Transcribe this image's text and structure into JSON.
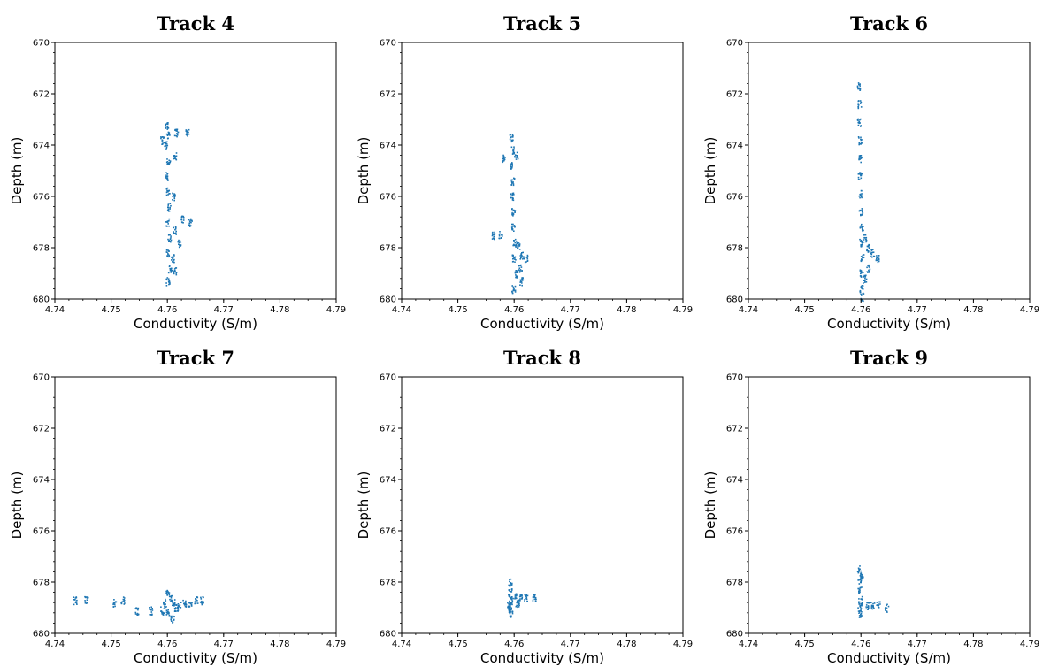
{
  "chart_data": [
    {
      "type": "scatter",
      "title": "Track 4",
      "xlabel": "Conductivity (S/m)",
      "ylabel": "Depth (m)",
      "xlim": [
        4.74,
        4.79
      ],
      "ylim": [
        680,
        670
      ],
      "y_inverted": true,
      "xticks": [
        "4.74",
        "4.75",
        "4.76",
        "4.77",
        "4.78",
        "4.79"
      ],
      "yticks": [
        "670",
        "672",
        "674",
        "676",
        "678",
        "680"
      ],
      "color": "#1f77b4",
      "points": [
        [
          4.7598,
          673.2
        ],
        [
          4.76,
          673.6
        ],
        [
          4.7597,
          674.0
        ],
        [
          4.7601,
          674.6
        ],
        [
          4.7598,
          675.2
        ],
        [
          4.76,
          675.8
        ],
        [
          4.7602,
          676.4
        ],
        [
          4.7599,
          677.0
        ],
        [
          4.7603,
          677.6
        ],
        [
          4.76,
          678.2
        ],
        [
          4.7604,
          678.8
        ],
        [
          4.76,
          679.3
        ],
        [
          4.7615,
          673.5
        ],
        [
          4.7635,
          673.5
        ],
        [
          4.759,
          673.8
        ],
        [
          4.7612,
          674.4
        ],
        [
          4.761,
          676.0
        ],
        [
          4.7625,
          676.9
        ],
        [
          4.764,
          677.0
        ],
        [
          4.7612,
          677.3
        ],
        [
          4.762,
          677.8
        ],
        [
          4.7608,
          678.4
        ],
        [
          4.7612,
          678.9
        ]
      ]
    },
    {
      "type": "scatter",
      "title": "Track 5",
      "xlabel": "Conductivity (S/m)",
      "ylabel": "Depth (m)",
      "xlim": [
        4.74,
        4.79
      ],
      "ylim": [
        680,
        670
      ],
      "y_inverted": true,
      "xticks": [
        "4.74",
        "4.75",
        "4.76",
        "4.77",
        "4.78",
        "4.79"
      ],
      "yticks": [
        "670",
        "672",
        "674",
        "676",
        "678",
        "680"
      ],
      "color": "#1f77b4",
      "points": [
        [
          4.7594,
          673.7
        ],
        [
          4.7596,
          674.2
        ],
        [
          4.7595,
          674.8
        ],
        [
          4.7597,
          675.4
        ],
        [
          4.7596,
          676.0
        ],
        [
          4.7598,
          676.6
        ],
        [
          4.7597,
          677.2
        ],
        [
          4.76,
          677.8
        ],
        [
          4.7599,
          678.4
        ],
        [
          4.7601,
          679.0
        ],
        [
          4.7598,
          679.6
        ],
        [
          4.7603,
          674.4
        ],
        [
          4.758,
          674.5
        ],
        [
          4.7575,
          677.5
        ],
        [
          4.7563,
          677.5
        ],
        [
          4.7606,
          677.9
        ],
        [
          4.7612,
          678.3
        ],
        [
          4.762,
          678.4
        ],
        [
          4.761,
          678.8
        ],
        [
          4.7612,
          679.3
        ]
      ]
    },
    {
      "type": "scatter",
      "title": "Track 6",
      "xlabel": "Conductivity (S/m)",
      "ylabel": "Depth (m)",
      "xlim": [
        4.74,
        4.79
      ],
      "ylim": [
        680,
        670
      ],
      "y_inverted": true,
      "xticks": [
        "4.74",
        "4.75",
        "4.76",
        "4.77",
        "4.78",
        "4.79"
      ],
      "yticks": [
        "670",
        "672",
        "674",
        "676",
        "678",
        "680"
      ],
      "color": "#1f77b4",
      "points": [
        [
          4.7595,
          671.7
        ],
        [
          4.7597,
          672.4
        ],
        [
          4.7596,
          673.1
        ],
        [
          4.7597,
          673.8
        ],
        [
          4.7598,
          674.5
        ],
        [
          4.7597,
          675.2
        ],
        [
          4.7598,
          675.9
        ],
        [
          4.7599,
          676.6
        ],
        [
          4.76,
          677.2
        ],
        [
          4.76,
          677.8
        ],
        [
          4.7601,
          678.4
        ],
        [
          4.76,
          679.0
        ],
        [
          4.76,
          679.6
        ],
        [
          4.7601,
          679.9
        ],
        [
          4.7606,
          677.6
        ],
        [
          4.7612,
          678.0
        ],
        [
          4.762,
          678.2
        ],
        [
          4.7628,
          678.4
        ],
        [
          4.7612,
          678.8
        ],
        [
          4.7606,
          679.2
        ]
      ]
    },
    {
      "type": "scatter",
      "title": "Track 7",
      "xlabel": "Conductivity (S/m)",
      "ylabel": "Depth (m)",
      "xlim": [
        4.74,
        4.79
      ],
      "ylim": [
        680,
        670
      ],
      "y_inverted": true,
      "xticks": [
        "4.74",
        "4.75",
        "4.76",
        "4.77",
        "4.78",
        "4.79"
      ],
      "yticks": [
        "670",
        "672",
        "674",
        "676",
        "678",
        "680"
      ],
      "color": "#1f77b4",
      "points": [
        [
          4.76,
          678.4
        ],
        [
          4.7605,
          678.6
        ],
        [
          4.761,
          678.8
        ],
        [
          4.7615,
          679.0
        ],
        [
          4.76,
          679.2
        ],
        [
          4.7608,
          679.4
        ],
        [
          4.762,
          678.9
        ],
        [
          4.763,
          678.8
        ],
        [
          4.764,
          678.9
        ],
        [
          4.765,
          678.7
        ],
        [
          4.766,
          678.7
        ],
        [
          4.7595,
          678.8
        ],
        [
          4.759,
          679.1
        ],
        [
          4.757,
          679.1
        ],
        [
          4.7545,
          679.1
        ],
        [
          4.752,
          678.7
        ],
        [
          4.7505,
          678.8
        ],
        [
          4.7455,
          678.7
        ],
        [
          4.7435,
          678.7
        ]
      ]
    },
    {
      "type": "scatter",
      "title": "Track 8",
      "xlabel": "Conductivity (S/m)",
      "ylabel": "Depth (m)",
      "xlim": [
        4.74,
        4.79
      ],
      "ylim": [
        680,
        670
      ],
      "y_inverted": true,
      "xticks": [
        "4.74",
        "4.75",
        "4.76",
        "4.77",
        "4.78",
        "4.79"
      ],
      "yticks": [
        "670",
        "672",
        "674",
        "676",
        "678",
        "680"
      ],
      "color": "#1f77b4",
      "points": [
        [
          4.7592,
          678.0
        ],
        [
          4.7592,
          678.4
        ],
        [
          4.7593,
          678.7
        ],
        [
          4.7592,
          679.0
        ],
        [
          4.7593,
          679.2
        ],
        [
          4.76,
          678.5
        ],
        [
          4.761,
          678.6
        ],
        [
          4.762,
          678.6
        ],
        [
          4.7635,
          678.6
        ],
        [
          4.7605,
          678.8
        ],
        [
          4.759,
          678.9
        ]
      ]
    },
    {
      "type": "scatter",
      "title": "Track 9",
      "xlabel": "Conductivity (S/m)",
      "ylabel": "Depth (m)",
      "xlim": [
        4.74,
        4.79
      ],
      "ylim": [
        680,
        670
      ],
      "y_inverted": true,
      "xticks": [
        "4.74",
        "4.75",
        "4.76",
        "4.77",
        "4.78",
        "4.79"
      ],
      "yticks": [
        "670",
        "672",
        "674",
        "676",
        "678",
        "680"
      ],
      "color": "#1f77b4",
      "points": [
        [
          4.7596,
          677.5
        ],
        [
          4.7597,
          677.9
        ],
        [
          4.7597,
          678.3
        ],
        [
          4.7598,
          678.7
        ],
        [
          4.7597,
          679.0
        ],
        [
          4.7598,
          679.2
        ],
        [
          4.761,
          678.9
        ],
        [
          4.762,
          678.9
        ],
        [
          4.763,
          678.9
        ],
        [
          4.7645,
          679.0
        ],
        [
          4.76,
          677.7
        ]
      ]
    }
  ]
}
